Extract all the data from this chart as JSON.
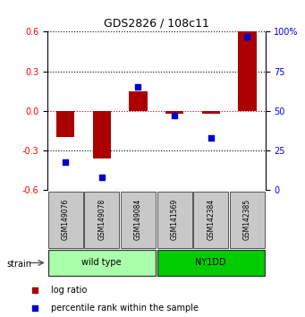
{
  "title": "GDS2826 / 108c11",
  "samples": [
    "GSM149076",
    "GSM149078",
    "GSM149084",
    "GSM141569",
    "GSM142384",
    "GSM142385"
  ],
  "log_ratio": [
    -0.2,
    -0.36,
    0.15,
    -0.02,
    -0.02,
    0.6
  ],
  "percentile_rank": [
    18,
    8,
    65,
    47,
    33,
    97
  ],
  "groups": [
    {
      "label": "wild type",
      "indices": [
        0,
        1,
        2
      ],
      "color": "#AAFFAA"
    },
    {
      "label": "NY1DD",
      "indices": [
        3,
        4,
        5
      ],
      "color": "#00CC00"
    }
  ],
  "group_label": "strain",
  "left_ylim": [
    -0.6,
    0.6
  ],
  "right_ylim": [
    0,
    100
  ],
  "left_yticks": [
    -0.6,
    -0.3,
    0.0,
    0.3,
    0.6
  ],
  "right_yticks": [
    0,
    25,
    50,
    75,
    100
  ],
  "bar_color": "#AA0000",
  "dot_color": "#0000CC",
  "zero_line_color": "#CC0000",
  "grid_color": "#000000",
  "bg_color": "#FFFFFF",
  "label_row_color": "#C8C8C8",
  "legend_bar_label": "log ratio",
  "legend_dot_label": "percentile rank within the sample"
}
